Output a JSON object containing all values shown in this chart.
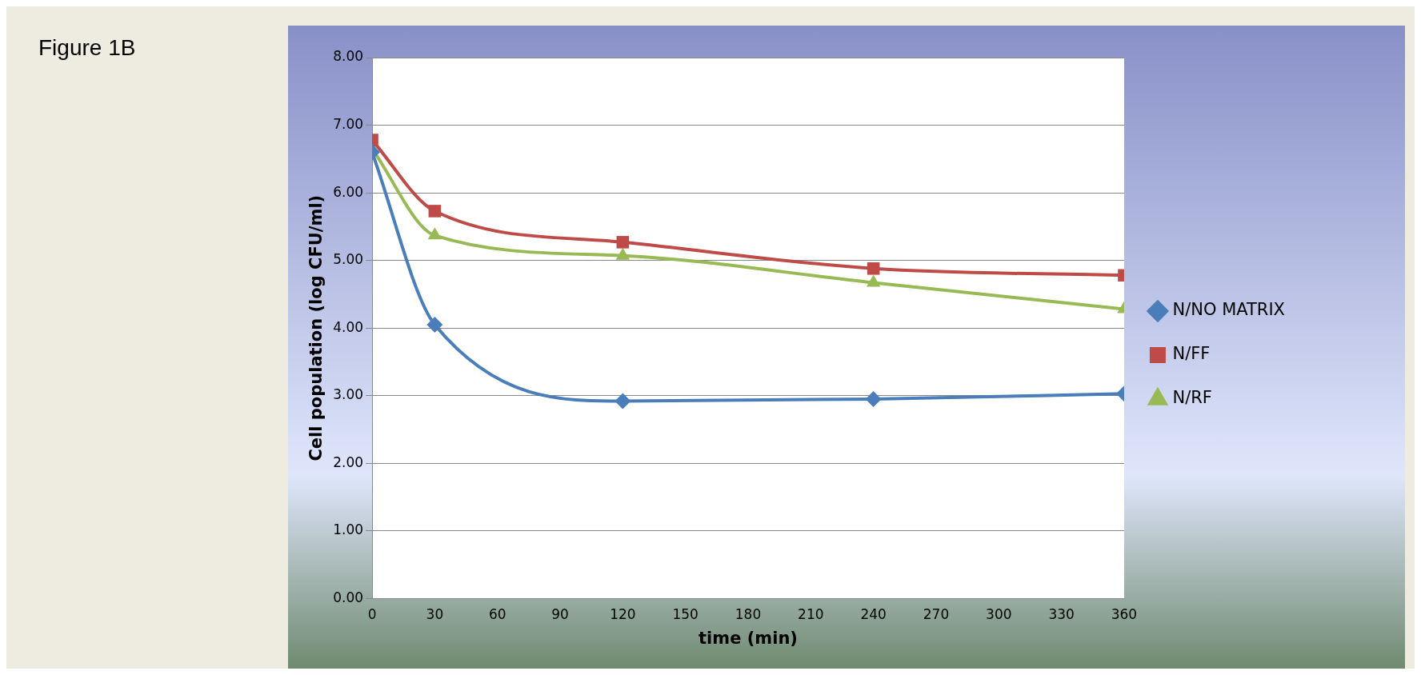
{
  "chart_data": {
    "type": "line",
    "title": "Figure 1B",
    "xlabel": "time (min)",
    "ylabel": "Cell population (log CFU/ml)",
    "x": [
      0,
      30,
      120,
      240,
      360
    ],
    "series": [
      {
        "name": "N/NO MATRIX",
        "color": "#4a7ebb",
        "marker": "diamond",
        "values": [
          6.6,
          4.05,
          2.92,
          2.95,
          3.03
        ]
      },
      {
        "name": "N/FF",
        "color": "#be4b48",
        "marker": "square",
        "values": [
          6.78,
          5.73,
          5.27,
          4.88,
          4.78
        ]
      },
      {
        "name": "N/RF",
        "color": "#98b954",
        "marker": "triangle",
        "values": [
          6.65,
          5.37,
          5.07,
          4.67,
          4.28
        ]
      }
    ],
    "xlim": [
      0,
      360
    ],
    "xticks": [
      0,
      30,
      60,
      90,
      120,
      150,
      180,
      210,
      240,
      270,
      300,
      330,
      360
    ],
    "ylim": [
      0,
      8
    ],
    "yticks": [
      {
        "value": 0,
        "label": "0.00"
      },
      {
        "value": 1,
        "label": "1.00"
      },
      {
        "value": 2,
        "label": "2.00"
      },
      {
        "value": 3,
        "label": "3.00"
      },
      {
        "value": 4,
        "label": "4.00"
      },
      {
        "value": 5,
        "label": "5.00"
      },
      {
        "value": 6,
        "label": "6.00"
      },
      {
        "value": 7,
        "label": "7.00"
      },
      {
        "value": 8,
        "label": "8.00"
      }
    ],
    "grid": "y",
    "legend": "right",
    "line_style": "solid"
  }
}
